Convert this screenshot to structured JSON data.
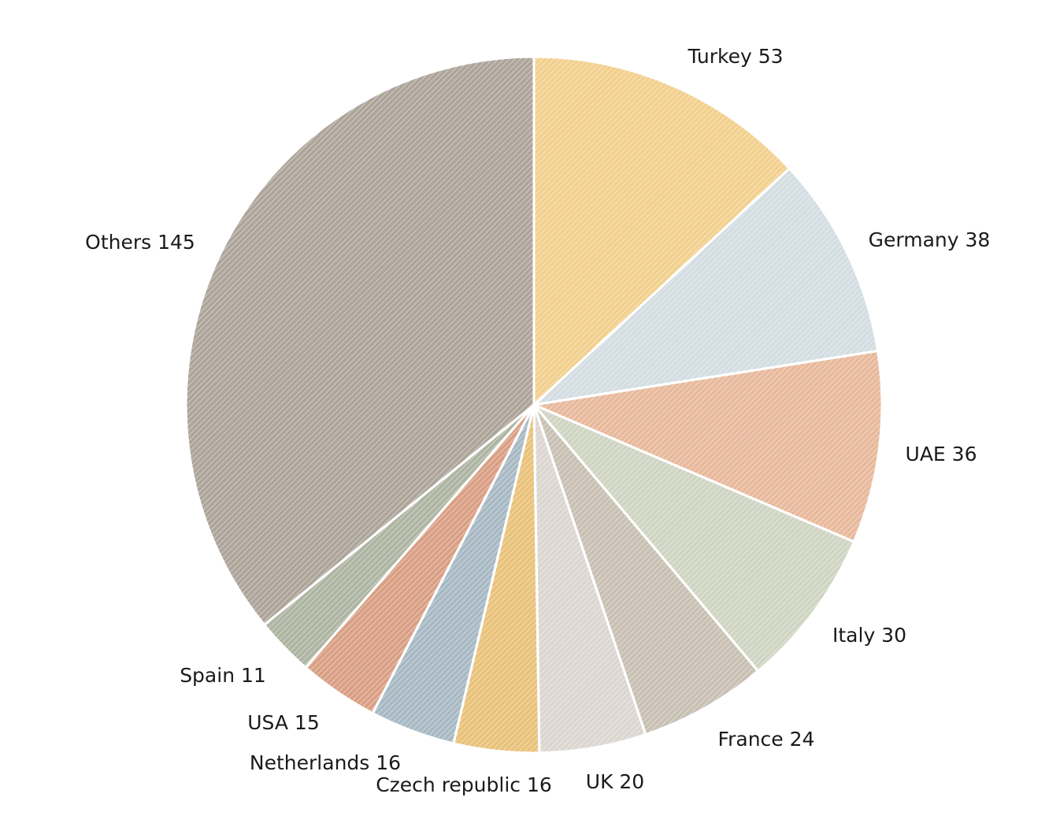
{
  "chart_data": {
    "type": "pie",
    "title": "",
    "start_angle_deg": 0,
    "direction": "clockwise",
    "slices": [
      {
        "label": "Turkey 53",
        "name": "Turkey",
        "value": 53,
        "color": "#f2d08e"
      },
      {
        "label": "Germany 38",
        "name": "Germany",
        "value": 38,
        "color": "#d3dde2"
      },
      {
        "label": "UAE 36",
        "name": "UAE",
        "value": 36,
        "color": "#e8b99c"
      },
      {
        "label": "Italy 30",
        "name": "Italy",
        "value": 30,
        "color": "#cfd5c2"
      },
      {
        "label": "France 24",
        "name": "France",
        "value": 24,
        "color": "#c9c0b4"
      },
      {
        "label": "UK 20",
        "name": "UK",
        "value": 20,
        "color": "#dcd6d1"
      },
      {
        "label": "Czech republic 16",
        "name": "Czech republic",
        "value": 16,
        "color": "#e9c27a"
      },
      {
        "label": "Netherlands 16",
        "name": "Netherlands",
        "value": 16,
        "color": "#a8b9c4"
      },
      {
        "label": "USA 15",
        "name": "USA",
        "value": 15,
        "color": "#d99f84"
      },
      {
        "label": "Spain 11",
        "name": "Spain",
        "value": 11,
        "color": "#aeb5a2"
      },
      {
        "label": "Others 145",
        "name": "Others",
        "value": 145,
        "color": "#aea59a"
      }
    ]
  }
}
